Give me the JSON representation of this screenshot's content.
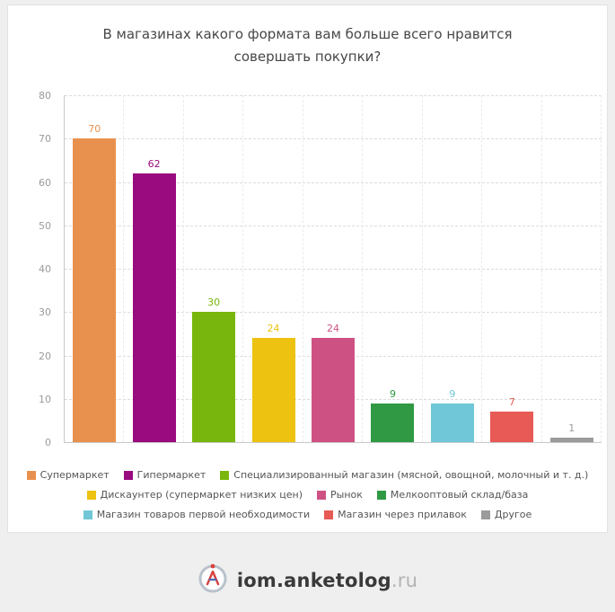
{
  "title": "В магазинах какого формата вам больше всего нравится совершать покупки?",
  "chart_data": {
    "type": "bar",
    "title": "В магазинах какого формата вам больше всего нравится совершать покупки?",
    "categories": [
      "Супермаркет",
      "Гипермаркет",
      "Специализированный магазин (мясной, овощной, молочный и т. д.)",
      "Дискаунтер (супермаркет низких цен)",
      "Рынок",
      "Мелкооптовый склад/база",
      "Магазин товаров первой необходимости",
      "Магазин через прилавок",
      "Другое"
    ],
    "values": [
      70,
      62,
      30,
      24,
      24,
      9,
      9,
      7,
      1
    ],
    "colors": [
      "#e8914e",
      "#990b7e",
      "#79b60d",
      "#edc211",
      "#ce5184",
      "#2f9a43",
      "#6fc7d7",
      "#e85a55",
      "#9b9b9b"
    ],
    "xlabel": "",
    "ylabel": "",
    "ylim": [
      0,
      80
    ],
    "yticks": [
      0,
      10,
      20,
      30,
      40,
      50,
      60,
      70,
      80
    ],
    "grid": true,
    "gridline_style": "dashed",
    "legend_position": "bottom",
    "value_labels": true
  },
  "legend_rows": [
    [
      0,
      1,
      2
    ],
    [
      3,
      4,
      5
    ],
    [
      6,
      7,
      8
    ]
  ],
  "footer": {
    "brand": "iom.anketolog",
    "tld": ".ru",
    "logo_letter": "A",
    "logo_red": "#d8403c",
    "logo_blue": "#4a6fb5",
    "logo_ring": "#b9c2cb"
  }
}
